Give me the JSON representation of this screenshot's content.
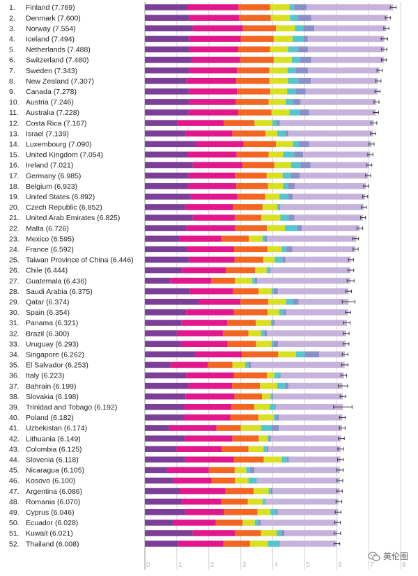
{
  "chart_data": {
    "type": "bar",
    "stacked": true,
    "orientation": "horizontal",
    "xlim": [
      0,
      8
    ],
    "x_ticks": [
      "0",
      "1",
      "2",
      "3",
      "4",
      "5",
      "6",
      "7",
      "8"
    ],
    "grid": true,
    "segment_colors": [
      "#7b3f98",
      "#e2178c",
      "#f26522",
      "#d9e021",
      "#56c5d0",
      "#8b8fc8",
      "#c6b3dc"
    ],
    "rows": [
      {
        "rank": "1.",
        "country": "Finland",
        "score": "7.769",
        "segments": [
          1.34,
          1.59,
          0.99,
          0.6,
          0.15,
          0.39,
          2.71
        ],
        "error": 0.09
      },
      {
        "rank": "2.",
        "country": "Denmark",
        "score": "7.600",
        "segments": [
          1.38,
          1.57,
          0.99,
          0.6,
          0.25,
          0.41,
          2.4
        ],
        "error": 0.08
      },
      {
        "rank": "3.",
        "country": "Norway",
        "score": "7.554",
        "segments": [
          1.49,
          1.58,
          1.03,
          0.59,
          0.27,
          0.34,
          2.25
        ],
        "error": 0.08
      },
      {
        "rank": "4.",
        "country": "Iceland",
        "score": "7.494",
        "segments": [
          1.38,
          1.62,
          1.03,
          0.59,
          0.35,
          0.12,
          2.4
        ],
        "error": 0.1
      },
      {
        "rank": "5.",
        "country": "Netherlands",
        "score": "7.488",
        "segments": [
          1.4,
          1.52,
          1.0,
          0.56,
          0.32,
          0.3,
          2.39
        ],
        "error": 0.08
      },
      {
        "rank": "6.",
        "country": "Switzerland",
        "score": "7.480",
        "segments": [
          1.45,
          1.53,
          1.05,
          0.57,
          0.26,
          0.34,
          2.28
        ],
        "error": 0.08
      },
      {
        "rank": "7.",
        "country": "Sweden",
        "score": "7.343",
        "segments": [
          1.39,
          1.49,
          1.01,
          0.57,
          0.27,
          0.37,
          2.24
        ],
        "error": 0.08
      },
      {
        "rank": "8.",
        "country": "New Zealand",
        "score": "7.307",
        "segments": [
          1.3,
          1.56,
          1.03,
          0.59,
          0.33,
          0.38,
          2.11
        ],
        "error": 0.08
      },
      {
        "rank": "9.",
        "country": "Canada",
        "score": "7.278",
        "segments": [
          1.37,
          1.51,
          1.04,
          0.53,
          0.27,
          0.31,
          2.25
        ],
        "error": 0.08
      },
      {
        "rank": "10.",
        "country": "Austria",
        "score": "7.246",
        "segments": [
          1.38,
          1.47,
          1.02,
          0.53,
          0.24,
          0.23,
          2.37
        ],
        "error": 0.08
      },
      {
        "rank": "11.",
        "country": "Australia",
        "score": "7.228",
        "segments": [
          1.37,
          1.55,
          1.04,
          0.56,
          0.33,
          0.29,
          2.09
        ],
        "error": 0.08
      },
      {
        "rank": "12.",
        "country": "Costa Rica",
        "score": "7.167",
        "segments": [
          1.03,
          1.44,
          0.96,
          0.56,
          0.14,
          0.09,
          2.94
        ],
        "error": 0.09
      },
      {
        "rank": "13.",
        "country": "Israel",
        "score": "7.139",
        "segments": [
          1.28,
          1.46,
          1.03,
          0.37,
          0.26,
          0.08,
          2.66
        ],
        "error": 0.08
      },
      {
        "rank": "14.",
        "country": "Luxembourg",
        "score": "7.090",
        "segments": [
          1.61,
          1.48,
          1.01,
          0.53,
          0.19,
          0.32,
          1.95
        ],
        "error": 0.08
      },
      {
        "rank": "15.",
        "country": "United Kingdom",
        "score": "7.054",
        "segments": [
          1.33,
          1.54,
          1.0,
          0.45,
          0.35,
          0.28,
          2.1
        ],
        "error": 0.08
      },
      {
        "rank": "16.",
        "country": "Ireland",
        "score": "7.021",
        "segments": [
          1.5,
          1.55,
          1.0,
          0.52,
          0.3,
          0.31,
          1.84
        ],
        "error": 0.08
      },
      {
        "rank": "17.",
        "country": "Germany",
        "score": "6.985",
        "segments": [
          1.37,
          1.45,
          0.99,
          0.5,
          0.26,
          0.27,
          2.14
        ],
        "error": 0.08
      },
      {
        "rank": "18.",
        "country": "Belgium",
        "score": "6.923",
        "segments": [
          1.36,
          1.5,
          0.99,
          0.47,
          0.16,
          0.21,
          2.23
        ],
        "error": 0.08
      },
      {
        "rank": "19.",
        "country": "United States",
        "score": "6.892",
        "segments": [
          1.43,
          1.46,
          0.87,
          0.45,
          0.28,
          0.13,
          2.27
        ],
        "error": 0.08
      },
      {
        "rank": "20.",
        "country": "Czech Republic",
        "score": "6.852",
        "segments": [
          1.27,
          1.49,
          0.92,
          0.46,
          0.05,
          0.04,
          2.62
        ],
        "error": 0.08
      },
      {
        "rank": "21.",
        "country": "United Arab Emirates",
        "score": "6.825",
        "segments": [
          1.5,
          1.31,
          0.83,
          0.6,
          0.26,
          0.18,
          2.14
        ],
        "error": 0.08
      },
      {
        "rank": "22.",
        "country": "Malta",
        "score": "6.726",
        "segments": [
          1.3,
          1.52,
          1.0,
          0.56,
          0.38,
          0.15,
          1.81
        ],
        "error": 0.09
      },
      {
        "rank": "23.",
        "country": "Mexico",
        "score": "6.595",
        "segments": [
          1.07,
          1.32,
          0.86,
          0.43,
          0.07,
          0.07,
          2.8
        ],
        "error": 0.09
      },
      {
        "rank": "24.",
        "country": "France",
        "score": "6.592",
        "segments": [
          1.32,
          1.47,
          1.05,
          0.44,
          0.15,
          0.18,
          1.98
        ],
        "error": 0.08
      },
      {
        "rank": "25.",
        "country": "Taiwan Province of China",
        "score": "6.446",
        "segments": [
          1.37,
          1.43,
          0.91,
          0.35,
          0.24,
          0.1,
          2.04
        ],
        "error": 0.08
      },
      {
        "rank": "26.",
        "country": "Chile",
        "score": "6.444",
        "segments": [
          1.16,
          1.37,
          0.92,
          0.36,
          0.1,
          0.03,
          2.5
        ],
        "error": 0.09
      },
      {
        "rank": "27.",
        "country": "Guatemala",
        "score": "6.436",
        "segments": [
          0.8,
          1.27,
          0.75,
          0.54,
          0.08,
          0.07,
          2.92
        ],
        "error": 0.11
      },
      {
        "rank": "28.",
        "country": "Saudi Arabia",
        "score": "6.375",
        "segments": [
          1.4,
          1.36,
          0.8,
          0.4,
          0.07,
          0.13,
          2.21
        ],
        "error": 0.09
      },
      {
        "rank": "29.",
        "country": "Qatar",
        "score": "6.374",
        "segments": [
          1.68,
          1.31,
          0.87,
          0.56,
          0.22,
          0.17,
          1.56
        ],
        "error": 0.2
      },
      {
        "rank": "30.",
        "country": "Spain",
        "score": "6.354",
        "segments": [
          1.29,
          1.49,
          1.06,
          0.36,
          0.15,
          0.08,
          1.93
        ],
        "error": 0.08
      },
      {
        "rank": "31.",
        "country": "Panama",
        "score": "6.321",
        "segments": [
          1.15,
          1.43,
          0.89,
          0.47,
          0.05,
          0.07,
          2.26
        ],
        "error": 0.1
      },
      {
        "rank": "32.",
        "country": "Brazil",
        "score": "6.300",
        "segments": [
          1.0,
          1.44,
          0.8,
          0.39,
          0.1,
          0.09,
          2.48
        ],
        "error": 0.09
      },
      {
        "rank": "33.",
        "country": "Uruguay",
        "score": "6.293",
        "segments": [
          1.12,
          1.47,
          0.89,
          0.48,
          0.06,
          0.15,
          2.12
        ],
        "error": 0.09
      },
      {
        "rank": "34.",
        "country": "Singapore",
        "score": "6.262",
        "segments": [
          1.57,
          1.46,
          1.14,
          0.56,
          0.27,
          0.45,
          0.81
        ],
        "error": 0.09
      },
      {
        "rank": "35.",
        "country": "El Salvador",
        "score": "6.253",
        "segments": [
          0.8,
          1.17,
          0.77,
          0.4,
          0.1,
          0.08,
          2.93
        ],
        "error": 0.1
      },
      {
        "rank": "36.",
        "country": "Italy",
        "score": "6.223",
        "segments": [
          1.29,
          1.49,
          1.04,
          0.23,
          0.16,
          0.03,
          1.99
        ],
        "error": 0.09
      },
      {
        "rank": "37.",
        "country": "Bahrain",
        "score": "6.199",
        "segments": [
          1.36,
          1.37,
          0.87,
          0.54,
          0.24,
          0.11,
          1.69
        ],
        "error": 0.15
      },
      {
        "rank": "38.",
        "country": "Slovakia",
        "score": "6.198",
        "segments": [
          1.27,
          1.53,
          0.87,
          0.26,
          0.05,
          0.03,
          2.18
        ],
        "error": 0.09
      },
      {
        "rank": "39.",
        "country": "Trinidad and Tobago",
        "score": "6.192",
        "segments": [
          1.23,
          1.48,
          0.71,
          0.49,
          0.17,
          0.02,
          2.09
        ],
        "error": 0.29
      },
      {
        "rank": "40.",
        "country": "Poland",
        "score": "6.182",
        "segments": [
          1.21,
          1.46,
          0.88,
          0.48,
          0.07,
          0.09,
          1.99
        ],
        "error": 0.09
      },
      {
        "rank": "41.",
        "country": "Uzbekistan",
        "score": "6.174",
        "segments": [
          0.75,
          1.49,
          0.76,
          0.63,
          0.32,
          0.24,
          1.98
        ],
        "error": 0.09
      },
      {
        "rank": "42.",
        "country": "Lithuania",
        "score": "6.149",
        "segments": [
          1.24,
          1.5,
          0.82,
          0.28,
          0.04,
          0.06,
          2.2
        ],
        "error": 0.09
      },
      {
        "rank": "43.",
        "country": "Colombia",
        "score": "6.125",
        "segments": [
          0.99,
          1.41,
          0.84,
          0.47,
          0.1,
          0.05,
          2.27
        ],
        "error": 0.09
      },
      {
        "rank": "44.",
        "country": "Slovenia",
        "score": "6.118",
        "segments": [
          1.26,
          1.52,
          0.94,
          0.56,
          0.16,
          0.06,
          1.62
        ],
        "error": 0.09
      },
      {
        "rank": "45.",
        "country": "Nicaragua",
        "score": "6.105",
        "segments": [
          0.69,
          1.31,
          0.81,
          0.36,
          0.12,
          0.14,
          2.67
        ],
        "error": 0.1
      },
      {
        "rank": "46.",
        "country": "Kosovo",
        "score": "6.100",
        "segments": [
          0.88,
          1.21,
          0.73,
          0.42,
          0.25,
          0.01,
          2.6
        ],
        "error": 0.09
      },
      {
        "rank": "47.",
        "country": "Argentina",
        "score": "6.086",
        "segments": [
          1.09,
          1.43,
          0.88,
          0.47,
          0.07,
          0.05,
          2.1
        ],
        "error": 0.09
      },
      {
        "rank": "48.",
        "country": "Romania",
        "score": "6.070",
        "segments": [
          1.16,
          1.23,
          0.83,
          0.46,
          0.08,
          0.01,
          2.29
        ],
        "error": 0.09
      },
      {
        "rank": "49.",
        "country": "Cyprus",
        "score": "6.046",
        "segments": [
          1.26,
          1.22,
          1.04,
          0.41,
          0.19,
          0.04,
          1.89
        ],
        "error": 0.09
      },
      {
        "rank": "50.",
        "country": "Ecuador",
        "score": "6.028",
        "segments": [
          0.91,
          1.31,
          0.84,
          0.38,
          0.12,
          0.06,
          2.41
        ],
        "error": 0.09
      },
      {
        "rank": "51.",
        "country": "Kuwait",
        "score": "6.021",
        "segments": [
          1.5,
          1.32,
          0.81,
          0.49,
          0.14,
          0.1,
          1.66
        ],
        "error": 0.1
      },
      {
        "rank": "52.",
        "country": "Thailand",
        "score": "6.008",
        "segments": [
          1.05,
          1.41,
          0.83,
          0.56,
          0.34,
          0.03,
          1.79
        ],
        "error": 0.09
      }
    ]
  },
  "watermark": {
    "text": "英伦圈",
    "icon": "wechat-icon"
  }
}
